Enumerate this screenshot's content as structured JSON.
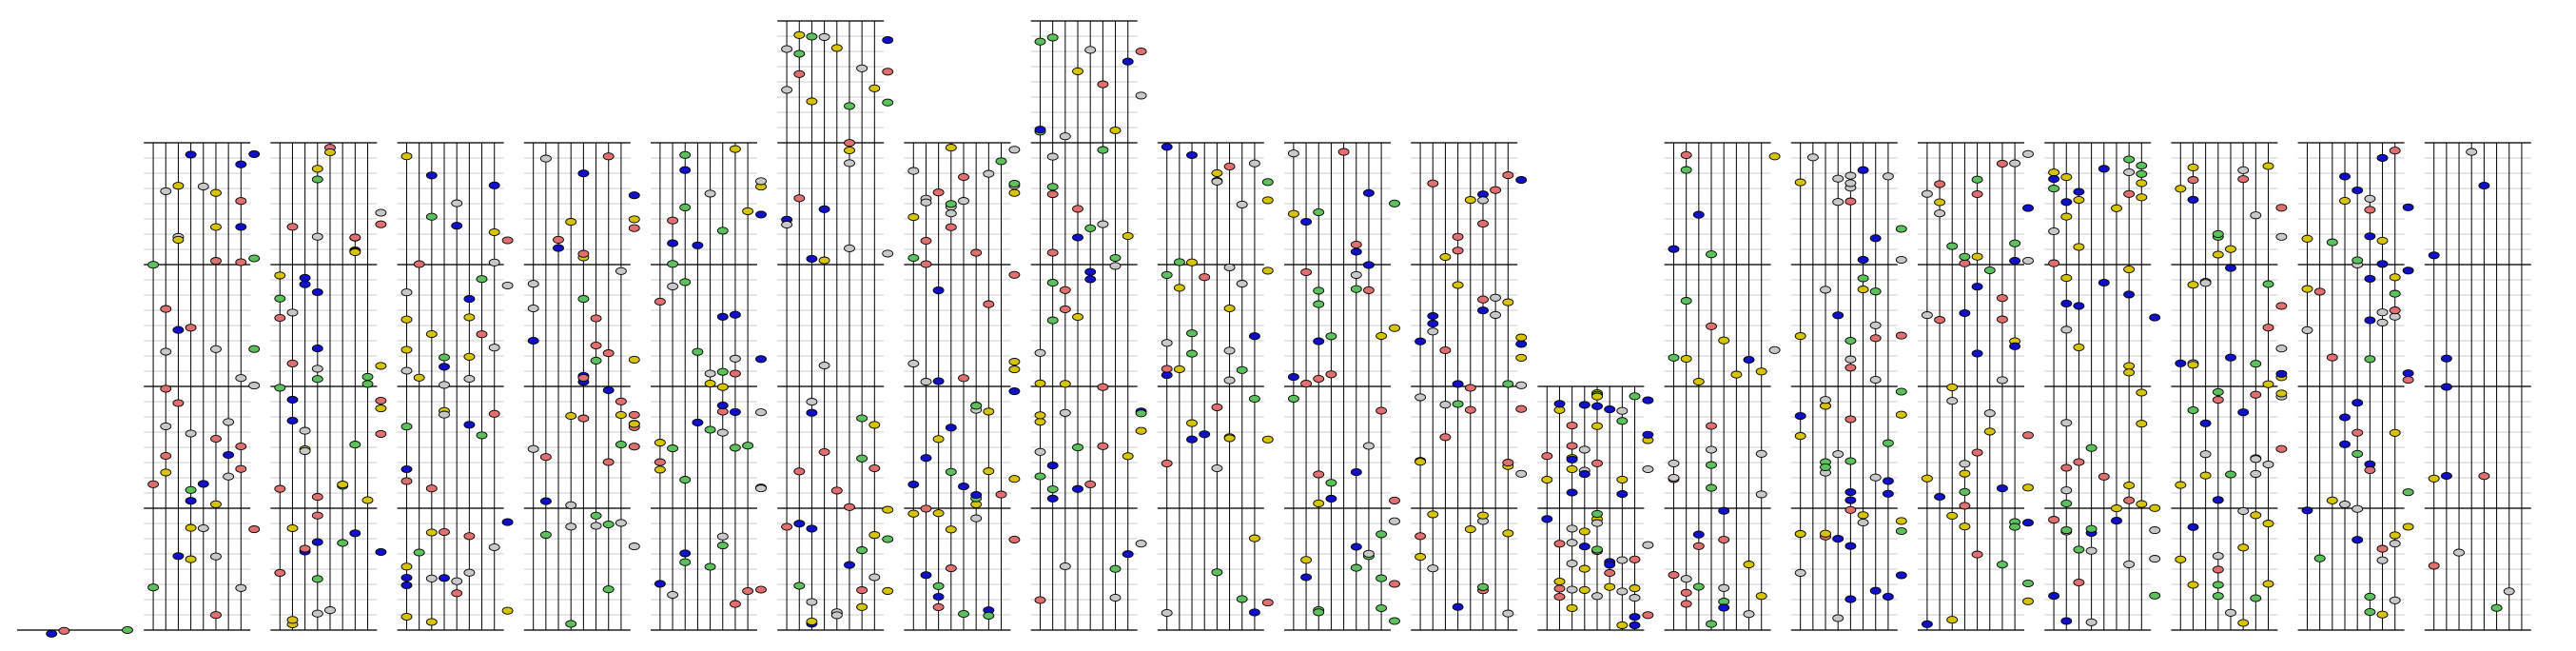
{
  "chart_data": {
    "type": "scatter",
    "colors": {
      "yellow": "#d6c400",
      "blue": "#1010c8",
      "green": "#5cc05c",
      "red": "#e07070",
      "gray": "#c8c8c8",
      "outline": "#000000",
      "string": "#000000",
      "fret": "#999999"
    },
    "strings_per_panel": 8,
    "panels": [
      {
        "top_band": 4,
        "rows": 4,
        "notes": []
      },
      {
        "top_band": 0,
        "rows": 4,
        "notes": []
      },
      {
        "top_band": 0,
        "rows": 4,
        "notes": []
      },
      {
        "top_band": 0,
        "rows": 4,
        "notes": []
      },
      {
        "top_band": 0,
        "rows": 4,
        "notes": []
      },
      {
        "top_band": 0,
        "rows": 4,
        "notes": []
      },
      {
        "top_band": -1,
        "rows": 5,
        "notes": []
      },
      {
        "top_band": 0,
        "rows": 4,
        "notes": []
      },
      {
        "top_band": -1,
        "rows": 5,
        "notes": []
      },
      {
        "top_band": 0,
        "rows": 4,
        "notes": []
      },
      {
        "top_band": 0,
        "rows": 4,
        "notes": []
      },
      {
        "top_band": 0,
        "rows": 4,
        "notes": []
      },
      {
        "top_band": 2,
        "rows": 2,
        "notes": []
      },
      {
        "top_band": 0,
        "rows": 4,
        "notes": []
      },
      {
        "top_band": 0,
        "rows": 4,
        "notes": []
      },
      {
        "top_band": 0,
        "rows": 4,
        "notes": []
      },
      {
        "top_band": 0,
        "rows": 4,
        "notes": []
      },
      {
        "top_band": 0,
        "rows": 4,
        "notes": []
      },
      {
        "top_band": 0,
        "rows": 4,
        "notes": []
      },
      {
        "top_band": 0,
        "rows": 4,
        "notes": []
      }
    ]
  }
}
